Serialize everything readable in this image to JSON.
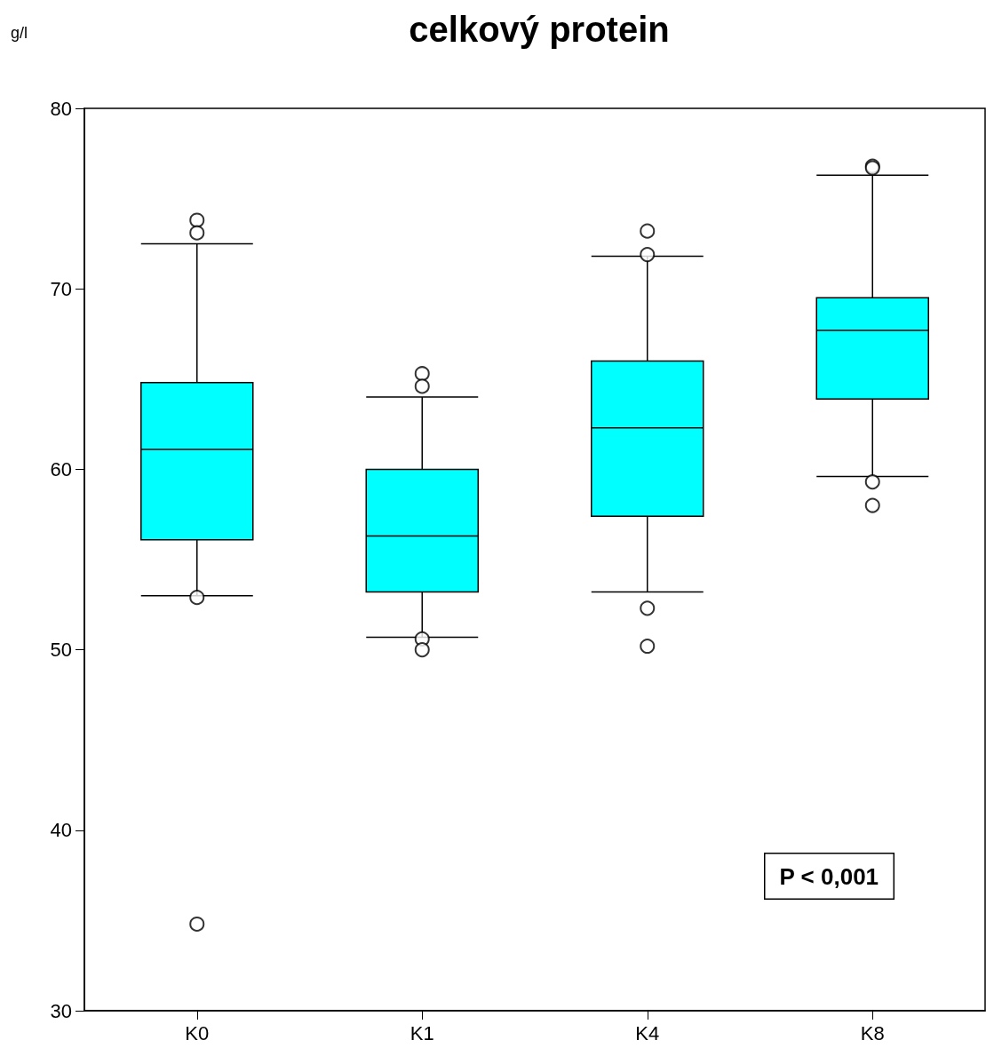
{
  "chart_data": {
    "type": "box",
    "title": "celkový protein",
    "ylabel": "g/l",
    "categories": [
      "K0",
      "K1",
      "K4",
      "K8"
    ],
    "series": [
      {
        "color": "#00ffff",
        "boxes": [
          {
            "low": 53.0,
            "q1": 56.1,
            "median": 61.1,
            "q3": 64.8,
            "high": 72.5,
            "outliers": [
              73.8,
              73.1,
              52.9,
              34.8
            ]
          },
          {
            "low": 50.7,
            "q1": 53.2,
            "median": 56.3,
            "q3": 60.0,
            "high": 64.0,
            "outliers": [
              65.3,
              64.6,
              50.6,
              50.0
            ]
          },
          {
            "low": 53.2,
            "q1": 57.4,
            "median": 62.3,
            "q3": 66.0,
            "high": 71.8,
            "outliers": [
              73.2,
              71.9,
              52.3,
              50.2
            ]
          },
          {
            "low": 59.6,
            "q1": 63.9,
            "median": 67.7,
            "q3": 69.5,
            "high": 76.3,
            "outliers": [
              76.8,
              76.7,
              59.3,
              58.0
            ]
          }
        ]
      }
    ],
    "ylim": [
      30,
      80
    ],
    "yticks": [
      30,
      40,
      50,
      60,
      70,
      80
    ],
    "annotations": [
      "P < 0,001"
    ],
    "grid": false,
    "marker": "circle"
  }
}
